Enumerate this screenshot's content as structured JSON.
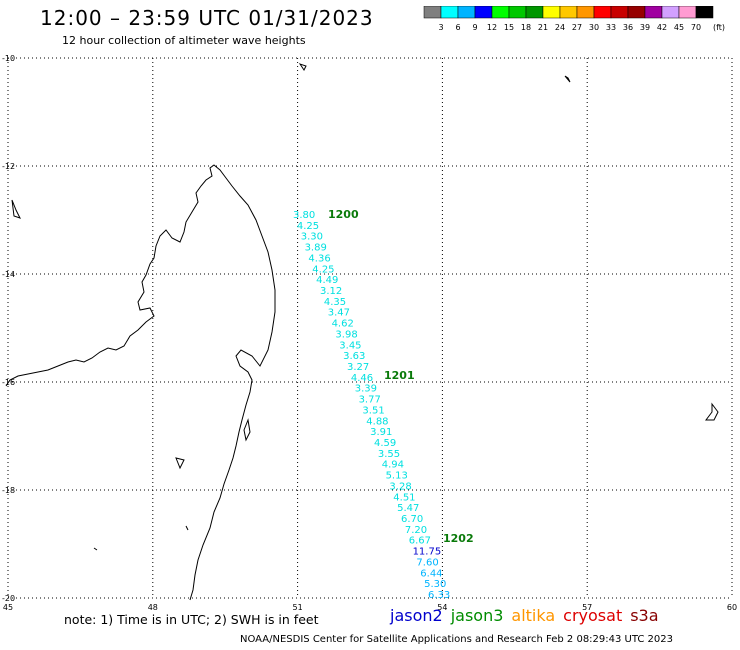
{
  "header": {
    "title": "12:00 – 23:59 UTC 01/31/2023",
    "subtitle": "12 hour collection of altimeter wave heights"
  },
  "colorbar": {
    "unit_label": "(ft)",
    "ticks": [
      "3",
      "6",
      "9",
      "12",
      "15",
      "18",
      "21",
      "24",
      "27",
      "30",
      "33",
      "36",
      "39",
      "42",
      "45",
      "70"
    ],
    "colors": [
      "#7f7f7f",
      "#00ffff",
      "#00b4ff",
      "#0000ff",
      "#00ff00",
      "#00c800",
      "#009600",
      "#ffff00",
      "#ffc800",
      "#ff9600",
      "#ff0000",
      "#c80000",
      "#960000",
      "#a000a0",
      "#d2a0ff",
      "#ff9bd2",
      "#000000"
    ]
  },
  "map": {
    "lat_labels": [
      "-10",
      "-12",
      "-14",
      "-16",
      "-18",
      "-20"
    ],
    "lon_labels": [
      "45",
      "48",
      "51",
      "54",
      "57",
      "60"
    ],
    "time_labels": [
      "1200",
      "1201",
      "1202"
    ],
    "swh_values": [
      "3.80",
      "4.25",
      "3.30",
      "3.89",
      "4.36",
      "4.25",
      "4.49",
      "3.12",
      "4.35",
      "3.47",
      "4.62",
      "3.98",
      "3.45",
      "3.63",
      "3.27",
      "4.46",
      "3.39",
      "3.77",
      "3.51",
      "4.88",
      "3.91",
      "4.59",
      "3.55",
      "4.94",
      "5.13",
      "3.28",
      "4.51",
      "5.47",
      "6.70",
      "7.20",
      "6.67",
      "11.75",
      "7.60",
      "6.44",
      "5.30",
      "6.33"
    ],
    "swh_colors": [
      "#00e0e0",
      "#00e0e0",
      "#00e0e0",
      "#00e0e0",
      "#00e0e0",
      "#00e0e0",
      "#00e0e0",
      "#00e0e0",
      "#00e0e0",
      "#00e0e0",
      "#00e0e0",
      "#00e0e0",
      "#00e0e0",
      "#00e0e0",
      "#00e0e0",
      "#00e0e0",
      "#00e0e0",
      "#00e0e0",
      "#00e0e0",
      "#00e0e0",
      "#00e0e0",
      "#00e0e0",
      "#00e0e0",
      "#00e0e0",
      "#00e0e0",
      "#00e0e0",
      "#00e0e0",
      "#00e0e0",
      "#00e0e0",
      "#00e0e0",
      "#00e0e0",
      "#0000cc",
      "#00b4ff",
      "#00b4ff",
      "#00b4ff",
      "#00b4ff"
    ]
  },
  "footer": {
    "note": "note: 1) Time is in UTC; 2) SWH is in feet",
    "legend": [
      {
        "label": "jason2",
        "color": "#0000cc"
      },
      {
        "label": "jason3",
        "color": "#008c00"
      },
      {
        "label": "altika",
        "color": "#ff9600"
      },
      {
        "label": "cryosat",
        "color": "#dd0000"
      },
      {
        "label": "s3a",
        "color": "#880000"
      }
    ],
    "credit": "NOAA/NESDIS Center for Satellite Applications and Research    Feb  2 08:29:43 UTC 2023"
  }
}
